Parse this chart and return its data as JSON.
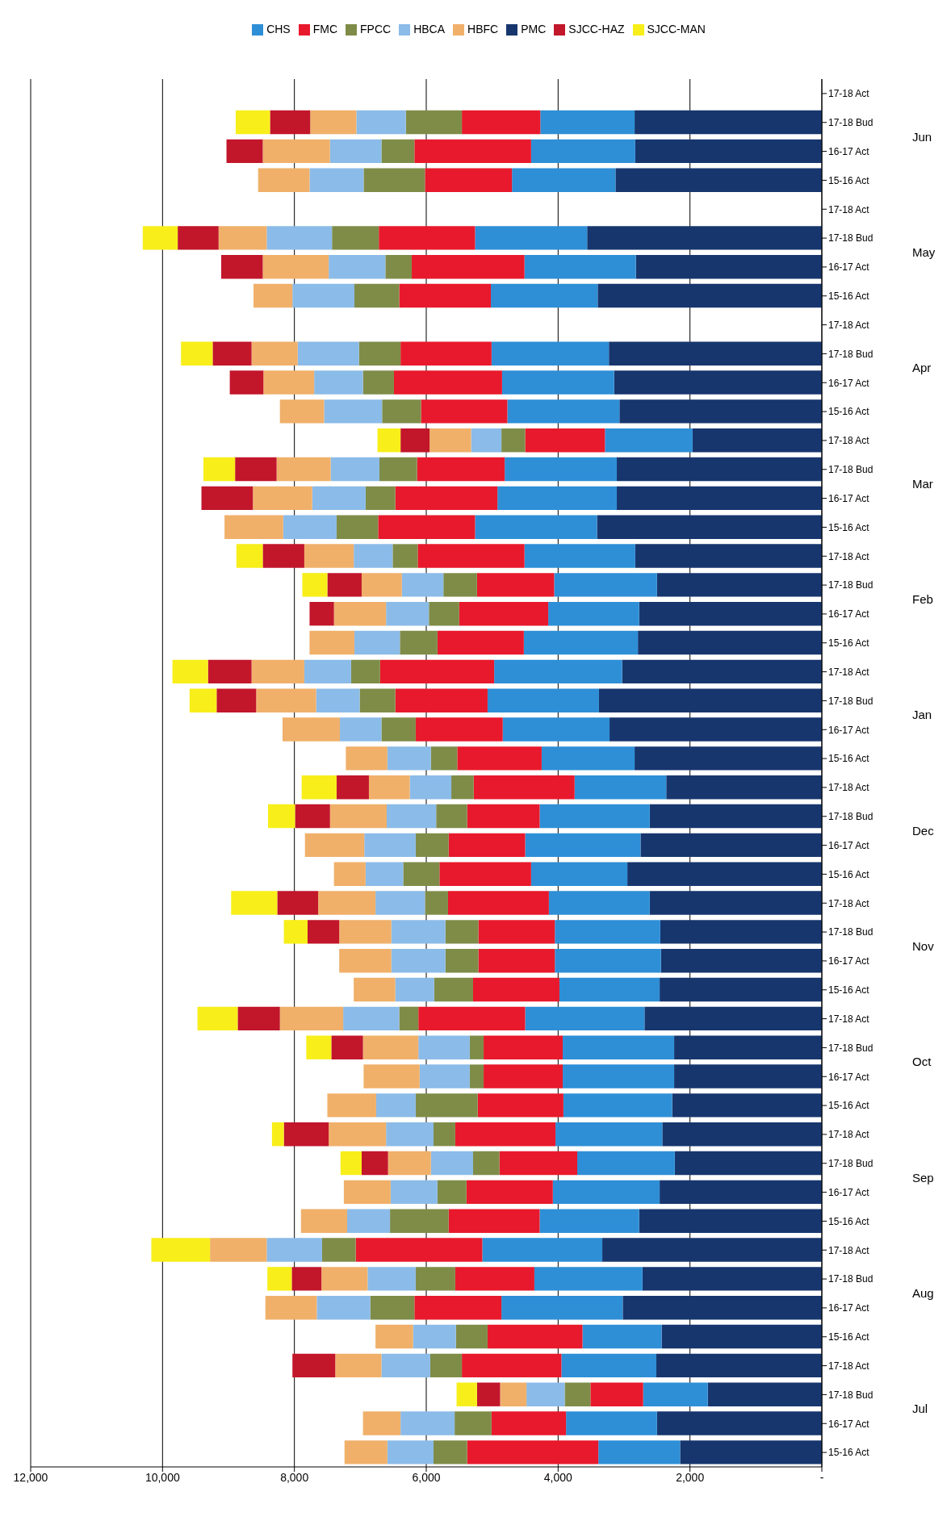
{
  "chart_data": {
    "type": "bar",
    "orientation": "horizontal",
    "stacked": true,
    "legend": "top",
    "grid": "x",
    "categories": [
      "17-18 Act",
      "17-18 Bud",
      "16-17 Act",
      "15-16 Act",
      "17-18 Act",
      "17-18 Bud",
      "16-17 Act",
      "15-16 Act",
      "17-18 Act",
      "17-18 Bud",
      "16-17 Act",
      "15-16 Act",
      "17-18 Act",
      "17-18 Bud",
      "16-17 Act",
      "15-16 Act",
      "17-18 Act",
      "17-18 Bud",
      "16-17 Act",
      "15-16 Act",
      "17-18 Act",
      "17-18 Bud",
      "16-17 Act",
      "15-16 Act",
      "17-18 Act",
      "17-18 Bud",
      "16-17 Act",
      "15-16 Act",
      "17-18 Act",
      "17-18 Bud",
      "16-17 Act",
      "15-16 Act",
      "17-18 Act",
      "17-18 Bud",
      "16-17 Act",
      "15-16 Act",
      "17-18 Act",
      "17-18 Bud",
      "16-17 Act",
      "15-16 Act",
      "17-18 Act",
      "17-18 Bud",
      "16-17 Act",
      "15-16 Act",
      "17-18 Act",
      "17-18 Bud",
      "16-17 Act",
      "15-16 Act"
    ],
    "annotations": [
      "Jun",
      "May",
      "Apr",
      "Mar",
      "Feb",
      "Jan",
      "Dec",
      "Nov",
      "Oct",
      "Sep",
      "Aug",
      "Jul"
    ],
    "xlim": [
      12000,
      0
    ],
    "xticks": [
      {
        "value": 0,
        "label": "-"
      },
      {
        "value": 2000,
        "label": "2,000"
      },
      {
        "value": 4000,
        "label": "4,000"
      },
      {
        "value": 6000,
        "label": "6,000"
      },
      {
        "value": 8000,
        "label": "8,000"
      },
      {
        "value": 10000,
        "label": "10,000"
      },
      {
        "value": 12000,
        "label": "12,000"
      }
    ],
    "series": [
      {
        "name": "PMC",
        "color": "#17366e",
        "values": [
          null,
          2840,
          2830,
          3130,
          null,
          3560,
          2820,
          3400,
          null,
          3230,
          3150,
          3070,
          1960,
          3110,
          3110,
          3410,
          2830,
          2500,
          2770,
          2790,
          3030,
          3380,
          3220,
          2840,
          2360,
          2610,
          2750,
          2950,
          2610,
          2450,
          2440,
          2460,
          2690,
          2240,
          2240,
          2270,
          2420,
          2230,
          2460,
          2770,
          3330,
          2720,
          3020,
          2430,
          2510,
          1730,
          2500,
          2150
        ]
      },
      {
        "name": "CHS",
        "color": "#2e8fd6",
        "values": [
          null,
          1430,
          1580,
          1570,
          null,
          1700,
          1690,
          1620,
          null,
          1780,
          1700,
          1700,
          1330,
          1700,
          1810,
          1850,
          1680,
          1560,
          1380,
          1730,
          1940,
          1690,
          1620,
          1410,
          1390,
          1670,
          1750,
          1460,
          1530,
          1600,
          1610,
          1520,
          1810,
          1690,
          1690,
          1650,
          1620,
          1480,
          1620,
          1510,
          1820,
          1640,
          1840,
          1200,
          1440,
          980,
          1380,
          1240
        ]
      },
      {
        "name": "FMC",
        "color": "#e8192c",
        "values": [
          null,
          1190,
          1770,
          1320,
          null,
          1460,
          1710,
          1390,
          null,
          1380,
          1640,
          1310,
          1210,
          1330,
          1550,
          1470,
          1620,
          1170,
          1350,
          1310,
          1730,
          1400,
          1320,
          1280,
          1530,
          1100,
          1160,
          1390,
          1530,
          1160,
          1160,
          1310,
          1620,
          1200,
          1200,
          1300,
          1520,
          1180,
          1310,
          1380,
          1920,
          1200,
          1320,
          1440,
          1510,
          800,
          1130,
          1990
        ]
      },
      {
        "name": "FPCC",
        "color": "#7f8c48",
        "values": [
          null,
          850,
          500,
          930,
          null,
          710,
          400,
          680,
          null,
          630,
          470,
          590,
          360,
          570,
          450,
          630,
          380,
          510,
          460,
          570,
          440,
          540,
          520,
          400,
          340,
          470,
          500,
          550,
          350,
          500,
          500,
          590,
          290,
          210,
          210,
          940,
          330,
          400,
          440,
          890,
          510,
          600,
          670,
          480,
          480,
          390,
          560,
          510
        ]
      },
      {
        "name": "HBCA",
        "color": "#8bbbe8",
        "values": [
          null,
          750,
          780,
          820,
          null,
          990,
          860,
          940,
          null,
          930,
          740,
          880,
          460,
          740,
          810,
          810,
          590,
          630,
          650,
          690,
          710,
          660,
          630,
          660,
          630,
          750,
          780,
          570,
          750,
          820,
          820,
          590,
          850,
          780,
          760,
          600,
          720,
          640,
          710,
          650,
          840,
          730,
          810,
          650,
          740,
          580,
          820,
          700
        ]
      },
      {
        "name": "HBFC",
        "color": "#f0b06a",
        "values": [
          null,
          700,
          1020,
          780,
          null,
          730,
          1000,
          590,
          null,
          700,
          770,
          670,
          630,
          820,
          900,
          890,
          750,
          610,
          790,
          680,
          800,
          910,
          870,
          630,
          620,
          860,
          900,
          480,
          870,
          790,
          790,
          630,
          960,
          840,
          850,
          740,
          870,
          650,
          710,
          700,
          860,
          700,
          780,
          570,
          700,
          400,
          570,
          650
        ]
      },
      {
        "name": "SJCC-HAZ",
        "color": "#c2162b",
        "values": [
          null,
          610,
          550,
          null,
          null,
          620,
          630,
          null,
          null,
          590,
          510,
          null,
          440,
          630,
          780,
          null,
          630,
          520,
          370,
          null,
          660,
          600,
          null,
          null,
          490,
          530,
          null,
          null,
          620,
          480,
          null,
          null,
          640,
          480,
          null,
          null,
          680,
          400,
          null,
          null,
          null,
          450,
          null,
          null,
          650,
          350,
          null,
          null
        ]
      },
      {
        "name": "SJCC-MAN",
        "color": "#f8ee1a",
        "values": [
          null,
          520,
          null,
          null,
          null,
          530,
          null,
          null,
          null,
          480,
          null,
          null,
          350,
          480,
          null,
          null,
          400,
          380,
          null,
          null,
          540,
          410,
          null,
          null,
          530,
          410,
          null,
          null,
          700,
          360,
          null,
          null,
          610,
          380,
          null,
          null,
          180,
          320,
          null,
          null,
          890,
          370,
          null,
          null,
          null,
          310,
          null,
          null
        ]
      }
    ]
  }
}
